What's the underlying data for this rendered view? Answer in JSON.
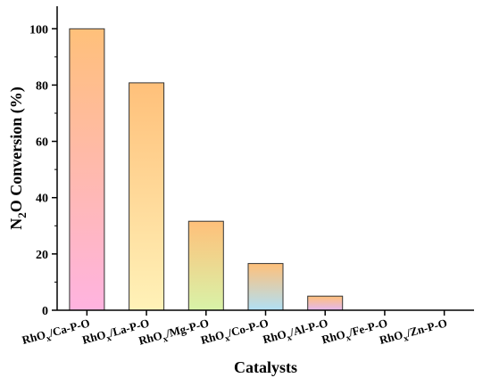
{
  "chart_data": {
    "type": "bar",
    "xlabel": "Catalysts",
    "ylabel": "N2O Conversion (%)",
    "ylabel_parts": {
      "pre": "N",
      "sub": "2",
      "post": "O Conversion (%)"
    },
    "ylim": [
      0,
      108
    ],
    "yticks": [
      "0",
      "20",
      "40",
      "60",
      "80",
      "100"
    ],
    "ytick_values": [
      0,
      20,
      40,
      60,
      80,
      100
    ],
    "categories": [
      "RhOx/Ca-P-O",
      "RhOx/La-P-O",
      "RhOx/Mg-P-O",
      "RhOx/Co-P-O",
      "RhOx/Al-P-O",
      "RhOx/Fe-P-O",
      "RhOx/Zn-P-O"
    ],
    "category_parts": [
      {
        "pre": "RhO",
        "sub": "x",
        "post": "/Ca-P-O"
      },
      {
        "pre": "RhO",
        "sub": "x",
        "post": "/La-P-O"
      },
      {
        "pre": "RhO",
        "sub": "x",
        "post": "/Mg-P-O"
      },
      {
        "pre": "RhO",
        "sub": "x",
        "post": "/Co-P-O"
      },
      {
        "pre": "RhO",
        "sub": "x",
        "post": "/Al-P-O"
      },
      {
        "pre": "RhO",
        "sub": "x",
        "post": "/Fe-P-O"
      },
      {
        "pre": "RhO",
        "sub": "x",
        "post": "/Zn-P-O"
      }
    ],
    "values": [
      100,
      80.8,
      31.6,
      16.6,
      5.0,
      0,
      0
    ],
    "bar_gradients": [
      {
        "top": "#ffc07a",
        "bottom": "#ffb3e0"
      },
      {
        "top": "#ffc07a",
        "bottom": "#fff2b8"
      },
      {
        "top": "#ffc07a",
        "bottom": "#d8f3a8"
      },
      {
        "top": "#ffc07a",
        "bottom": "#b0e0f5"
      },
      {
        "top": "#ffc07a",
        "bottom": "#e3b8f0"
      },
      {
        "top": "#ffc07a",
        "bottom": "#ffc07a"
      },
      {
        "top": "#ffc07a",
        "bottom": "#ffc07a"
      }
    ],
    "bar_edge_color": "#333333",
    "grid": false,
    "legend": "none"
  }
}
